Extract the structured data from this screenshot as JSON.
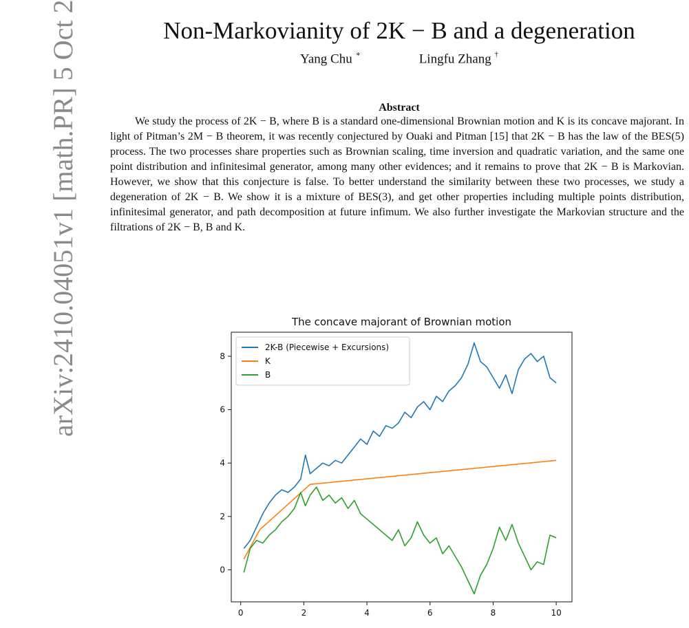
{
  "sidebar": {
    "arxiv_id": "arXiv:2410.04051v1  [math.PR]  5 Oct 2024"
  },
  "paper": {
    "title": "Non-Markovianity of 2K − B and a degeneration",
    "authors": [
      {
        "name": "Yang Chu",
        "mark": "∗"
      },
      {
        "name": "Lingfu Zhang",
        "mark": "†"
      }
    ],
    "abstract_heading": "Abstract",
    "abstract_text": "We study the process of 2K − B, where B is a standard one-dimensional Brownian motion and K is its concave majorant. In light of Pitman’s 2M − B theorem, it was recently conjectured by Ouaki and Pitman [15] that 2K − B has the law of the BES(5) process. The two processes share properties such as Brownian scaling, time inversion and quadratic variation, and the same one point distribution and infinitesimal generator, among many other evidences; and it remains to prove that 2K − B is Markovian. However, we show that this conjecture is false. To better understand the similarity between these two processes, we study a degeneration of 2K − B. We show it is a mixture of BES(3), and get other properties including multiple points distribution, infinitesimal generator, and path decomposition at future infimum. We also further investigate the Markovian structure and the filtrations of 2K − B, B and K."
  },
  "chart_data": {
    "type": "line",
    "title": "The concave majorant of Brownian motion",
    "xlabel": "",
    "ylabel": "",
    "xlim": [
      -0.3,
      10.5
    ],
    "ylim": [
      -1.2,
      8.9
    ],
    "xticks": [
      0,
      2,
      4,
      6,
      8,
      10
    ],
    "yticks": [
      0,
      2,
      4,
      6,
      8
    ],
    "legend_position": "top-left",
    "grid": false,
    "series": [
      {
        "name": "2K-B (Piecewise + Excursions)",
        "color": "#1f77b4",
        "x": [
          0.1,
          0.3,
          0.5,
          0.7,
          0.9,
          1.1,
          1.3,
          1.5,
          1.7,
          1.9,
          2.05,
          2.2,
          2.4,
          2.6,
          2.8,
          3.0,
          3.2,
          3.4,
          3.6,
          3.8,
          4.0,
          4.2,
          4.4,
          4.6,
          4.8,
          5.0,
          5.2,
          5.4,
          5.6,
          5.8,
          6.0,
          6.2,
          6.4,
          6.6,
          6.8,
          7.0,
          7.2,
          7.4,
          7.6,
          7.8,
          8.0,
          8.2,
          8.4,
          8.6,
          8.8,
          9.0,
          9.2,
          9.4,
          9.6,
          9.8,
          10.0
        ],
        "y": [
          0.8,
          1.1,
          1.6,
          2.1,
          2.5,
          2.8,
          3.0,
          2.9,
          3.1,
          3.4,
          4.3,
          3.6,
          3.8,
          4.0,
          3.9,
          4.1,
          4.0,
          4.3,
          4.6,
          4.9,
          4.7,
          5.2,
          5.0,
          5.4,
          5.3,
          5.5,
          5.9,
          5.7,
          6.1,
          6.3,
          6.0,
          6.5,
          6.3,
          6.7,
          6.9,
          7.2,
          7.7,
          8.5,
          7.8,
          7.6,
          7.2,
          6.8,
          7.3,
          6.6,
          7.5,
          7.9,
          8.1,
          7.8,
          8.0,
          7.2,
          7.0
        ]
      },
      {
        "name": "K",
        "color": "#ff7f0e",
        "x": [
          0.1,
          0.6,
          2.2,
          10.0
        ],
        "y": [
          0.4,
          1.5,
          3.2,
          4.1
        ]
      },
      {
        "name": "B",
        "color": "#2ca02c",
        "x": [
          0.1,
          0.3,
          0.5,
          0.7,
          0.9,
          1.1,
          1.3,
          1.5,
          1.7,
          1.9,
          2.05,
          2.2,
          2.4,
          2.6,
          2.8,
          3.0,
          3.2,
          3.4,
          3.6,
          3.8,
          4.0,
          4.2,
          4.4,
          4.6,
          4.8,
          5.0,
          5.2,
          5.4,
          5.6,
          5.8,
          6.0,
          6.2,
          6.4,
          6.6,
          6.8,
          7.0,
          7.2,
          7.4,
          7.6,
          7.8,
          8.0,
          8.2,
          8.4,
          8.6,
          8.8,
          9.0,
          9.2,
          9.4,
          9.6,
          9.8,
          10.0
        ],
        "y": [
          -0.1,
          0.8,
          1.1,
          1.0,
          1.3,
          1.5,
          1.8,
          2.0,
          2.3,
          2.9,
          2.4,
          2.8,
          3.1,
          2.6,
          2.8,
          2.5,
          2.7,
          2.3,
          2.6,
          2.1,
          1.9,
          1.7,
          1.5,
          1.3,
          1.1,
          1.5,
          0.9,
          1.2,
          1.8,
          1.3,
          1.0,
          1.2,
          0.6,
          0.9,
          0.5,
          0.1,
          -0.4,
          -0.9,
          -0.2,
          0.2,
          0.8,
          1.6,
          1.1,
          1.7,
          1.0,
          0.5,
          0.0,
          0.3,
          0.2,
          1.3,
          1.2
        ]
      }
    ]
  }
}
